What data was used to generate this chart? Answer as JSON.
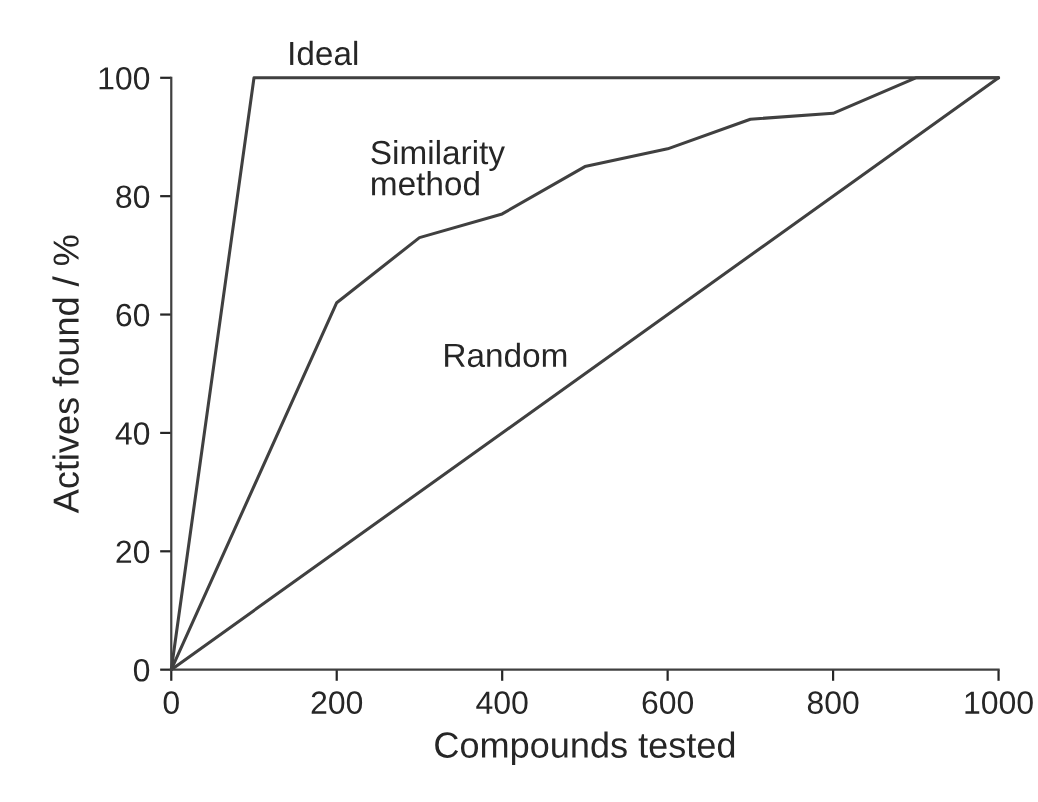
{
  "chart_data": {
    "type": "line",
    "xlabel": "Compounds tested",
    "ylabel": "Actives found / %",
    "xlim": [
      0,
      1000
    ],
    "xticks": [
      0,
      200,
      400,
      600,
      800,
      1000
    ],
    "ylim": [
      0,
      100
    ],
    "yticks": [
      0,
      20,
      40,
      60,
      80,
      100
    ],
    "grid": false,
    "legend": false,
    "marker": "none",
    "line_style": "solid",
    "series": [
      {
        "name": "Ideal",
        "color": "#404040",
        "x": [
          0,
          100,
          1000
        ],
        "values": [
          0,
          100,
          100
        ]
      },
      {
        "name": "Similarity method",
        "color": "#404040",
        "x": [
          0,
          200,
          300,
          400,
          500,
          600,
          700,
          800,
          900,
          1000
        ],
        "values": [
          0,
          62,
          73,
          77,
          85,
          88,
          93,
          94,
          100,
          100
        ]
      },
      {
        "name": "Random",
        "color": "#404040",
        "x": [
          0,
          1000
        ],
        "values": [
          0,
          100
        ]
      }
    ]
  }
}
